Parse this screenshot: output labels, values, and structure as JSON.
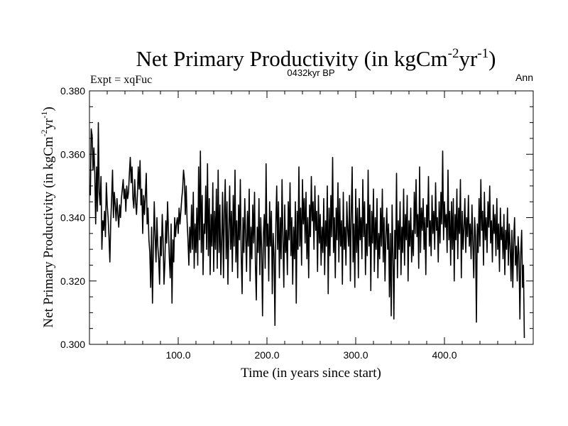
{
  "chart_data": {
    "type": "line",
    "title": "Net Primary Productivity (in kgCm",
    "title_exp1": "-2",
    "title_mid": "yr",
    "title_exp2": "-1",
    "title_end": ")",
    "subtitle": "0432kyr BP",
    "left_label": "Expt = xqFuc",
    "right_label": "Ann",
    "xlabel": "Time (in years since start)",
    "ylabel_text": "Net Primary Productivity (in kgCm",
    "ylabel_exp1": "-2",
    "ylabel_mid": "yr",
    "ylabel_exp2": "-1",
    "ylabel_end": ")",
    "xlim": [
      0,
      500
    ],
    "ylim": [
      0.3,
      0.38
    ],
    "x_ticks": [
      100,
      200,
      300,
      400
    ],
    "x_tick_labels": [
      "100.0",
      "200.0",
      "300.0",
      "400.0"
    ],
    "y_ticks": [
      0.3,
      0.32,
      0.34,
      0.36,
      0.38
    ],
    "y_tick_labels": [
      "0.300",
      "0.320",
      "0.340",
      "0.360",
      "0.380"
    ],
    "series": [
      {
        "name": "Net Primary Productivity",
        "color": "#000000",
        "x_start": 1,
        "x_step": 1,
        "values": [
          0.347,
          0.368,
          0.366,
          0.355,
          0.362,
          0.354,
          0.338,
          0.356,
          0.342,
          0.37,
          0.348,
          0.344,
          0.353,
          0.33,
          0.339,
          0.336,
          0.342,
          0.334,
          0.351,
          0.344,
          0.34,
          0.334,
          0.326,
          0.339,
          0.346,
          0.355,
          0.34,
          0.348,
          0.344,
          0.339,
          0.346,
          0.341,
          0.337,
          0.344,
          0.34,
          0.346,
          0.349,
          0.352,
          0.346,
          0.349,
          0.342,
          0.35,
          0.346,
          0.348,
          0.354,
          0.359,
          0.351,
          0.356,
          0.346,
          0.343,
          0.352,
          0.345,
          0.341,
          0.347,
          0.356,
          0.349,
          0.358,
          0.344,
          0.349,
          0.335,
          0.347,
          0.341,
          0.347,
          0.354,
          0.338,
          0.343,
          0.333,
          0.329,
          0.318,
          0.337,
          0.313,
          0.33,
          0.345,
          0.334,
          0.326,
          0.34,
          0.331,
          0.327,
          0.319,
          0.334,
          0.328,
          0.341,
          0.333,
          0.319,
          0.326,
          0.339,
          0.332,
          0.345,
          0.336,
          0.327,
          0.321,
          0.338,
          0.313,
          0.333,
          0.326,
          0.34,
          0.334,
          0.338,
          0.34,
          0.335,
          0.343,
          0.338,
          0.342,
          0.346,
          0.349,
          0.355,
          0.352,
          0.341,
          0.35,
          0.339,
          0.333,
          0.325,
          0.337,
          0.329,
          0.344,
          0.33,
          0.348,
          0.324,
          0.338,
          0.329,
          0.343,
          0.325,
          0.356,
          0.333,
          0.361,
          0.329,
          0.347,
          0.322,
          0.338,
          0.335,
          0.35,
          0.33,
          0.357,
          0.328,
          0.346,
          0.322,
          0.341,
          0.331,
          0.351,
          0.323,
          0.342,
          0.33,
          0.349,
          0.324,
          0.355,
          0.329,
          0.344,
          0.322,
          0.333,
          0.348,
          0.321,
          0.341,
          0.352,
          0.327,
          0.345,
          0.319,
          0.336,
          0.35,
          0.33,
          0.342,
          0.323,
          0.347,
          0.331,
          0.355,
          0.326,
          0.339,
          0.321,
          0.344,
          0.333,
          0.352,
          0.328,
          0.316,
          0.34,
          0.329,
          0.346,
          0.334,
          0.323,
          0.342,
          0.331,
          0.349,
          0.32,
          0.337,
          0.327,
          0.344,
          0.332,
          0.348,
          0.325,
          0.314,
          0.337,
          0.329,
          0.346,
          0.322,
          0.34,
          0.33,
          0.309,
          0.335,
          0.341,
          0.324,
          0.357,
          0.331,
          0.338,
          0.32,
          0.345,
          0.331,
          0.342,
          0.316,
          0.335,
          0.328,
          0.306,
          0.338,
          0.35,
          0.33,
          0.345,
          0.321,
          0.34,
          0.327,
          0.352,
          0.333,
          0.318,
          0.344,
          0.329,
          0.336,
          0.322,
          0.345,
          0.333,
          0.351,
          0.328,
          0.34,
          0.319,
          0.337,
          0.327,
          0.345,
          0.313,
          0.342,
          0.33,
          0.356,
          0.331,
          0.343,
          0.325,
          0.352,
          0.338,
          0.346,
          0.332,
          0.348,
          0.327,
          0.34,
          0.321,
          0.344,
          0.334,
          0.353,
          0.339,
          0.345,
          0.33,
          0.35,
          0.336,
          0.342,
          0.323,
          0.347,
          0.332,
          0.341,
          0.325,
          0.337,
          0.329,
          0.346,
          0.322,
          0.339,
          0.331,
          0.35,
          0.316,
          0.343,
          0.328,
          0.347,
          0.334,
          0.359,
          0.329,
          0.34,
          0.321,
          0.343,
          0.333,
          0.351,
          0.326,
          0.346,
          0.331,
          0.339,
          0.319,
          0.348,
          0.33,
          0.337,
          0.325,
          0.345,
          0.336,
          0.331,
          0.347,
          0.32,
          0.341,
          0.356,
          0.326,
          0.338,
          0.318,
          0.349,
          0.329,
          0.343,
          0.321,
          0.346,
          0.333,
          0.34,
          0.327,
          0.352,
          0.334,
          0.345,
          0.322,
          0.338,
          0.328,
          0.355,
          0.331,
          0.344,
          0.317,
          0.342,
          0.332,
          0.349,
          0.323,
          0.34,
          0.33,
          0.346,
          0.321,
          0.335,
          0.327,
          0.343,
          0.331,
          0.349,
          0.326,
          0.34,
          0.32,
          0.334,
          0.343,
          0.33,
          0.338,
          0.315,
          0.335,
          0.309,
          0.344,
          0.328,
          0.308,
          0.336,
          0.327,
          0.354,
          0.321,
          0.339,
          0.33,
          0.345,
          0.322,
          0.337,
          0.329,
          0.349,
          0.325,
          0.341,
          0.333,
          0.347,
          0.32,
          0.339,
          0.331,
          0.343,
          0.326,
          0.336,
          0.328,
          0.348,
          0.335,
          0.352,
          0.334,
          0.341,
          0.324,
          0.356,
          0.329,
          0.343,
          0.336,
          0.346,
          0.33,
          0.34,
          0.322,
          0.344,
          0.337,
          0.353,
          0.331,
          0.339,
          0.328,
          0.347,
          0.335,
          0.342,
          0.33,
          0.351,
          0.336,
          0.34,
          0.326,
          0.345,
          0.332,
          0.348,
          0.338,
          0.361,
          0.333,
          0.345,
          0.337,
          0.341,
          0.329,
          0.355,
          0.333,
          0.342,
          0.325,
          0.345,
          0.33,
          0.346,
          0.32,
          0.341,
          0.333,
          0.349,
          0.327,
          0.343,
          0.335,
          0.352,
          0.321,
          0.342,
          0.33,
          0.337,
          0.346,
          0.329,
          0.34,
          0.334,
          0.347,
          0.331,
          0.338,
          0.327,
          0.344,
          0.332,
          0.321,
          0.34,
          0.334,
          0.307,
          0.338,
          0.329,
          0.346,
          0.331,
          0.352,
          0.336,
          0.342,
          0.325,
          0.348,
          0.333,
          0.34,
          0.329,
          0.345,
          0.337,
          0.35,
          0.332,
          0.339,
          0.326,
          0.344,
          0.335,
          0.341,
          0.328,
          0.346,
          0.33,
          0.338,
          0.323,
          0.343,
          0.333,
          0.337,
          0.327,
          0.341,
          0.322,
          0.336,
          0.33,
          0.343,
          0.325,
          0.338,
          0.331,
          0.32,
          0.336,
          0.318,
          0.333,
          0.34,
          0.325,
          0.331,
          0.32,
          0.334,
          0.328,
          0.308,
          0.329,
          0.336,
          0.318,
          0.325,
          0.302
        ]
      }
    ]
  }
}
